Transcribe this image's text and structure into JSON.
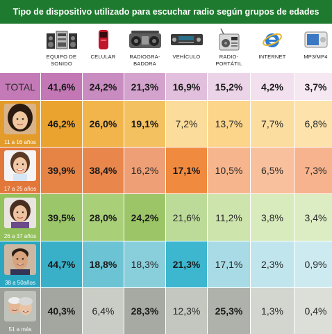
{
  "title": "Tipo de dispositivo utilizado para escuchar radio según grupos de edades",
  "colors": {
    "title_bg": "#1e7a2e"
  },
  "chart_data": {
    "type": "table",
    "title": "Tipo de dispositivo utilizado para escuchar radio según grupos de edades",
    "columns": [
      {
        "label": "EQUIPO DE\nSONIDO",
        "icon": "stereo-system-icon"
      },
      {
        "label": "CELULAR",
        "icon": "cell-phone-icon"
      },
      {
        "label": "RADIOGRA-\nBADORA",
        "icon": "boombox-icon"
      },
      {
        "label": "VEHÍCULO",
        "icon": "car-radio-icon"
      },
      {
        "label": "RADIO-\nPORTÁTIL",
        "icon": "portable-radio-icon"
      },
      {
        "label": "INTERNET",
        "icon": "internet-explorer-icon"
      },
      {
        "label": "MP3/MP4",
        "icon": "mp3-player-icon"
      }
    ],
    "rows": [
      {
        "label": "TOTAL",
        "values": [
          "41,6%",
          "24,2%",
          "21,3%",
          "16,9%",
          "15,2%",
          "4,2%",
          "3,7%"
        ],
        "colors": [
          "#c378b5",
          "#c98cc1",
          "#d4a3cd",
          "#e2c0dd",
          "#ecd4e8",
          "#f2e0ef",
          "#f5e8f3"
        ],
        "bold": [
          true,
          true,
          true,
          true,
          true,
          true,
          true
        ]
      },
      {
        "label": "11 a 16 años",
        "values": [
          "46,2%",
          "26,0%",
          "19,1%",
          "7,2%",
          "13,7%",
          "7,7%",
          "6,8%"
        ],
        "colors": [
          "#eaa32f",
          "#f1b54b",
          "#f4c160",
          "#fbdc9a",
          "#fcd58b",
          "#fcdda0",
          "#fde2ab"
        ],
        "bold": [
          true,
          true,
          true,
          false,
          false,
          false,
          false
        ]
      },
      {
        "label": "17 a 25 años",
        "values": [
          "39,9%",
          "38,4%",
          "16,2%",
          "17,1%",
          "10,5%",
          "6,5%",
          "7,3%"
        ],
        "colors": [
          "#e58445",
          "#e8864b",
          "#ee9f76",
          "#f08a3e",
          "#f7b58d",
          "#f8c09c",
          "#f6b38d"
        ],
        "bold": [
          true,
          true,
          false,
          true,
          false,
          false,
          false
        ]
      },
      {
        "label": "26 a 37 años",
        "values": [
          "39,5%",
          "28,0%",
          "24,2%",
          "21,6%",
          "11,2%",
          "3,8%",
          "3,4%"
        ],
        "colors": [
          "#9bc76a",
          "#a9cf78",
          "#9bc566",
          "#bcdb98",
          "#cde5ad",
          "#d8ebbd",
          "#dcedc3"
        ],
        "bold": [
          true,
          true,
          true,
          false,
          false,
          false,
          false
        ]
      },
      {
        "label": "38 a 50años",
        "values": [
          "44,7%",
          "18,8%",
          "18,3%",
          "21,3%",
          "17,1%",
          "2,3%",
          "0,9%"
        ],
        "colors": [
          "#39b0c8",
          "#6cc3d4",
          "#89cedb",
          "#3db6cf",
          "#a8dbe5",
          "#c1e5ec",
          "#cdeaf0"
        ],
        "bold": [
          true,
          true,
          false,
          true,
          false,
          false,
          false
        ]
      },
      {
        "label": "51 a más",
        "values": [
          "40,3%",
          "6,4%",
          "28,3%",
          "12,3%",
          "25,3%",
          "1,3%",
          "0,4%"
        ],
        "colors": [
          "#a3a7a0",
          "#c9cdc5",
          "#a6aaa2",
          "#c3c7bf",
          "#aeb2aa",
          "#d3d6cf",
          "#dcdfd8"
        ],
        "bold": [
          true,
          false,
          true,
          false,
          true,
          false,
          false
        ]
      }
    ],
    "label_colors": [
      "#c47ab6",
      "#e39c2b",
      "#e2773a",
      "#93c15c",
      "#2ba6c1",
      "#9b9f98"
    ]
  }
}
